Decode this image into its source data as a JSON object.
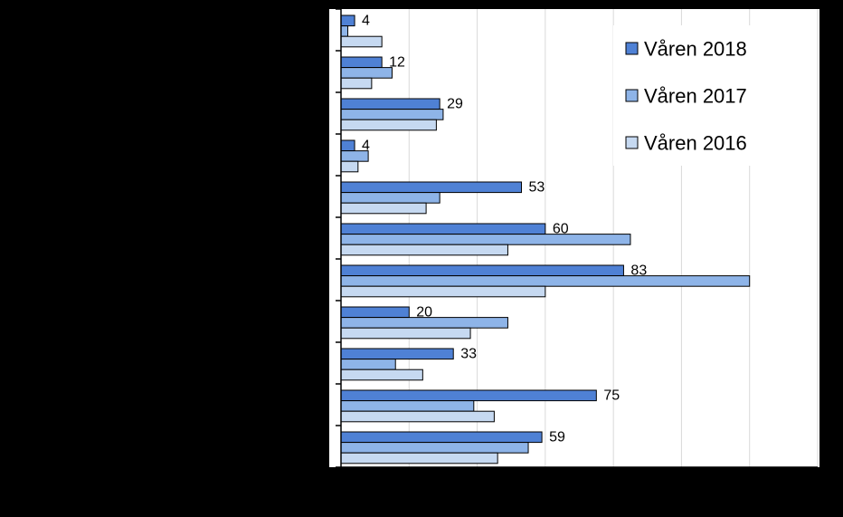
{
  "chart_data": {
    "type": "bar",
    "orientation": "horizontal",
    "title": "",
    "xlabel": "",
    "ylabel": "",
    "xlim": [
      0,
      140
    ],
    "grid": true,
    "legend_position": "top-right",
    "series": [
      {
        "name": "Våren 2018",
        "color": "#4F81D5",
        "values": [
          4,
          12,
          29,
          4,
          53,
          60,
          83,
          20,
          33,
          75,
          59
        ],
        "labels": [
          "4",
          "12",
          "29",
          "4",
          "53",
          "60",
          "83",
          "20",
          "33",
          "75",
          "59"
        ]
      },
      {
        "name": "Våren 2017",
        "color": "#8EB4E8",
        "values": [
          2,
          15,
          30,
          8,
          29,
          85,
          120,
          49,
          16,
          39,
          55
        ]
      },
      {
        "name": "Våren 2016",
        "color": "#C6D9F1",
        "values": [
          12,
          9,
          28,
          5,
          25,
          49,
          60,
          38,
          24,
          45,
          46
        ]
      }
    ]
  }
}
